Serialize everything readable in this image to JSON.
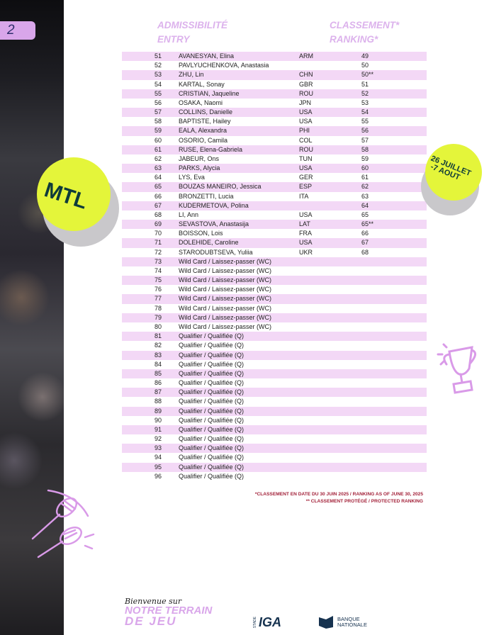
{
  "page_number": "2",
  "headers": {
    "entry_fr": "ADMISSIBILITÉ",
    "entry_en": "ENTRY",
    "ranking_fr": "CLASSEMENT*",
    "ranking_en": "RANKING*"
  },
  "rows": [
    {
      "num": "51",
      "name": "AVANESYAN, Elina",
      "country": "ARM",
      "rank": "49"
    },
    {
      "num": "52",
      "name": "PAVLYUCHENKOVA, Anastasia",
      "country": "",
      "rank": "50"
    },
    {
      "num": "53",
      "name": "ZHU, Lin",
      "country": "CHN",
      "rank": "50**"
    },
    {
      "num": "54",
      "name": "KARTAL, Sonay",
      "country": "GBR",
      "rank": "51"
    },
    {
      "num": "55",
      "name": "CRISTIAN, Jaqueline",
      "country": "ROU",
      "rank": "52"
    },
    {
      "num": "56",
      "name": "OSAKA, Naomi",
      "country": "JPN",
      "rank": "53"
    },
    {
      "num": "57",
      "name": "COLLINS, Danielle",
      "country": "USA",
      "rank": "54"
    },
    {
      "num": "58",
      "name": "BAPTISTE, Hailey",
      "country": "USA",
      "rank": "55"
    },
    {
      "num": "59",
      "name": "EALA, Alexandra",
      "country": "PHI",
      "rank": "56"
    },
    {
      "num": "60",
      "name": "OSORIO, Camila",
      "country": "COL",
      "rank": "57"
    },
    {
      "num": "61",
      "name": "RUSE, Elena-Gabriela",
      "country": "ROU",
      "rank": "58"
    },
    {
      "num": "62",
      "name": "JABEUR, Ons",
      "country": "TUN",
      "rank": "59"
    },
    {
      "num": "63",
      "name": "PARKS, Alycia",
      "country": "USA",
      "rank": "60"
    },
    {
      "num": "64",
      "name": "LYS, Eva",
      "country": "GER",
      "rank": "61"
    },
    {
      "num": "65",
      "name": "BOUZAS MANEIRO, Jessica",
      "country": "ESP",
      "rank": "62"
    },
    {
      "num": "66",
      "name": "BRONZETTI, Lucia",
      "country": "ITA",
      "rank": "63"
    },
    {
      "num": "67",
      "name": "KUDERMETOVA, Polina",
      "country": "",
      "rank": "64"
    },
    {
      "num": "68",
      "name": "LI, Ann",
      "country": "USA",
      "rank": "65"
    },
    {
      "num": "69",
      "name": "SEVASTOVA, Anastasija",
      "country": "LAT",
      "rank": "65**"
    },
    {
      "num": "70",
      "name": "BOISSON, Lois",
      "country": "FRA",
      "rank": "66"
    },
    {
      "num": "71",
      "name": "DOLEHIDE, Caroline",
      "country": "USA",
      "rank": "67"
    },
    {
      "num": "72",
      "name": "STARODUBTSEVA, Yuliia",
      "country": "UKR",
      "rank": "68"
    },
    {
      "num": "73",
      "name": "Wild Card / Laissez-passer (WC)",
      "country": "",
      "rank": ""
    },
    {
      "num": "74",
      "name": "Wild Card / Laissez-passer (WC)",
      "country": "",
      "rank": ""
    },
    {
      "num": "75",
      "name": "Wild Card / Laissez-passer (WC)",
      "country": "",
      "rank": ""
    },
    {
      "num": "76",
      "name": "Wild Card / Laissez-passer (WC)",
      "country": "",
      "rank": ""
    },
    {
      "num": "77",
      "name": "Wild Card / Laissez-passer (WC)",
      "country": "",
      "rank": ""
    },
    {
      "num": "78",
      "name": "Wild Card / Laissez-passer (WC)",
      "country": "",
      "rank": ""
    },
    {
      "num": "79",
      "name": "Wild Card / Laissez-passer (WC)",
      "country": "",
      "rank": ""
    },
    {
      "num": "80",
      "name": "Wild Card / Laissez-passer (WC)",
      "country": "",
      "rank": ""
    },
    {
      "num": "81",
      "name": "Qualifier / Qualifiée (Q)",
      "country": "",
      "rank": ""
    },
    {
      "num": "82",
      "name": "Qualifier / Qualifiée (Q)",
      "country": "",
      "rank": ""
    },
    {
      "num": "83",
      "name": "Qualifier / Qualifiée (Q)",
      "country": "",
      "rank": ""
    },
    {
      "num": "84",
      "name": "Qualifier / Qualifiée (Q)",
      "country": "",
      "rank": ""
    },
    {
      "num": "85",
      "name": "Qualifier / Qualifiée (Q)",
      "country": "",
      "rank": ""
    },
    {
      "num": "86",
      "name": "Qualifier / Qualifiée (Q)",
      "country": "",
      "rank": ""
    },
    {
      "num": "87",
      "name": "Qualifier / Qualifiée (Q)",
      "country": "",
      "rank": ""
    },
    {
      "num": "88",
      "name": "Qualifier / Qualifiée (Q)",
      "country": "",
      "rank": ""
    },
    {
      "num": "89",
      "name": "Qualifier / Qualifiée (Q)",
      "country": "",
      "rank": ""
    },
    {
      "num": "90",
      "name": "Qualifier / Qualifiée (Q)",
      "country": "",
      "rank": ""
    },
    {
      "num": "91",
      "name": "Qualifier / Qualifiée (Q)",
      "country": "",
      "rank": ""
    },
    {
      "num": "92",
      "name": "Qualifier / Qualifiée (Q)",
      "country": "",
      "rank": ""
    },
    {
      "num": "93",
      "name": "Qualifier / Qualifiée (Q)",
      "country": "",
      "rank": ""
    },
    {
      "num": "94",
      "name": "Qualifier / Qualifiée (Q)",
      "country": "",
      "rank": ""
    },
    {
      "num": "95",
      "name": "Qualifier / Qualifiée (Q)",
      "country": "",
      "rank": ""
    },
    {
      "num": "96",
      "name": "Qualifier / Qualifiée (Q)",
      "country": "",
      "rank": ""
    }
  ],
  "footnotes": {
    "ranking_date": "*CLASSEMENT EN DATE DU 30 JUIN 2025 / RANKING AS OF JUNE 30, 2025",
    "protected": "** CLASSEMENT PROTÉGÉ / PROTECTED RANKING"
  },
  "badges": {
    "city": "MTL",
    "dates_line1": "26 JUILLET",
    "dates_line2": "-7 AOUT"
  },
  "footer": {
    "slogan_line1": "Bienvenue sur",
    "slogan_line2": "NOTRE TERRAIN",
    "slogan_line3": "DE JEU",
    "stade_small": "STADE",
    "stade_logo": "IGA",
    "bank_line1": "BANQUE",
    "bank_line2": "NATIONALE"
  },
  "colors": {
    "row_stripe": "#f3d8f6",
    "header_lilac": "#dcb2ec",
    "ball_yellow": "#e4f53a",
    "ball_text": "#0f3b3a",
    "footnote_red": "#a3223a",
    "bank_navy": "#16324f"
  }
}
